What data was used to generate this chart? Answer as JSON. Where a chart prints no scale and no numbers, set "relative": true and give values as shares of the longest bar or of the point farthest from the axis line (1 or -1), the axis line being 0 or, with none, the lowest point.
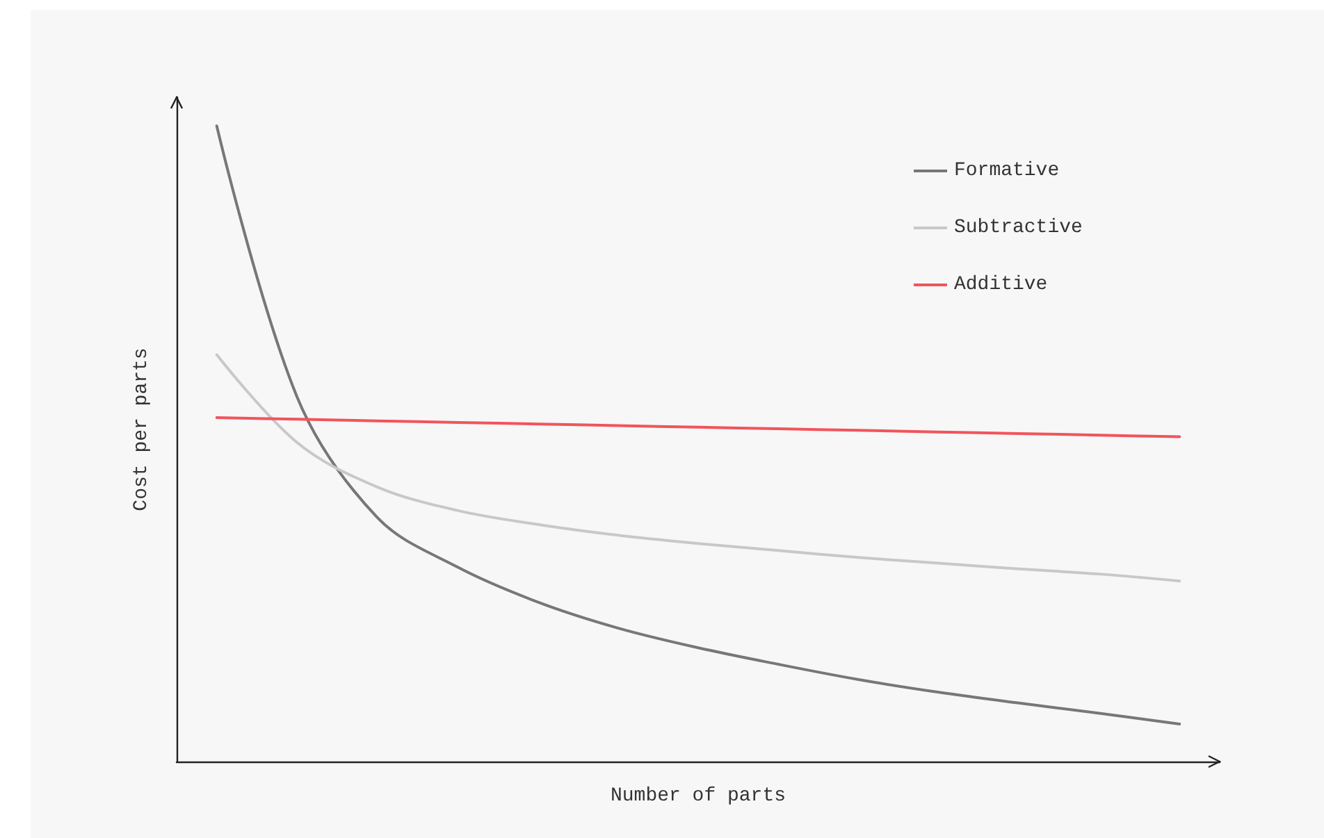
{
  "chart_data": {
    "type": "line",
    "xlabel": "Number of parts",
    "ylabel": "Cost per parts",
    "relative": true,
    "categories": [
      null,
      null,
      null,
      null,
      null,
      null,
      null,
      null,
      null,
      null,
      null,
      null,
      null
    ],
    "series": [
      {
        "name": "Formative",
        "color": "#777777",
        "values": [
          1.0,
          0.574,
          0.384,
          0.306,
          0.251,
          0.21,
          0.179,
          0.153,
          0.129,
          0.109,
          0.092,
          0.076,
          0.059
        ]
      },
      {
        "name": "Subtractive",
        "color": "#c8c8c8",
        "values": [
          0.64,
          0.502,
          0.432,
          0.395,
          0.373,
          0.356,
          0.343,
          0.332,
          0.321,
          0.312,
          0.303,
          0.295,
          0.284
        ]
      },
      {
        "name": "Additive",
        "color": "#f2545b",
        "values": [
          0.541,
          0.5385,
          0.536,
          0.5335,
          0.531,
          0.5285,
          0.526,
          0.5235,
          0.521,
          0.5185,
          0.516,
          0.5135,
          0.511
        ]
      }
    ],
    "legend": "top right",
    "grid": false,
    "marker": "none",
    "line_style": "solid"
  }
}
